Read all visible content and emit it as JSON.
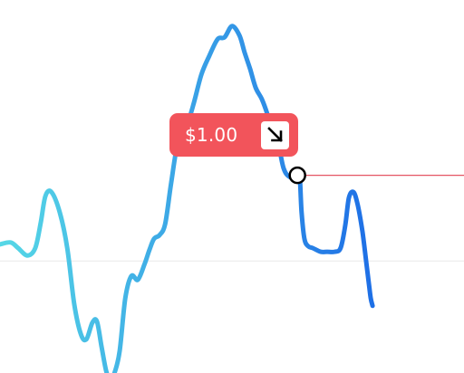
{
  "price_badge": {
    "value": "$1.00",
    "icon": "arrow-down-right-icon",
    "color": "#F2545B"
  },
  "colors": {
    "line_start": "#56D8E6",
    "line_end": "#1E6FE6",
    "price_line": "#E45563",
    "baseline": "#EEEEEE",
    "marker_fill": "#FFFFFF",
    "marker_stroke": "#000000"
  },
  "chart_data": {
    "type": "line",
    "grid": false,
    "xlim": [
      0,
      100
    ],
    "ylim": [
      0,
      100
    ],
    "series": [
      {
        "x": [
          0,
          2.3,
          3.9,
          5.9,
          7.6,
          8.8,
          9.8,
          11.1,
          12.9,
          14.5,
          16.0,
          17.4,
          18.6,
          19.9,
          20.9,
          21.9,
          22.9,
          23.8,
          24.8,
          25.8,
          27.0,
          28.3,
          29.7,
          31.1,
          32.2,
          33.2,
          34.4,
          35.6,
          36.9,
          38.3,
          40.2,
          41.8,
          43.4,
          45.1,
          46.9,
          48.4,
          50.0,
          51.6,
          52.7,
          53.9,
          55.1,
          56.4,
          57.6,
          58.6,
          59.8,
          61.1,
          62.5,
          64.1,
          64.6,
          65.0,
          65.6,
          66.4,
          67.4,
          69.1,
          70.5,
          72.1,
          73.4,
          74.4,
          75.2,
          76.2,
          77.1,
          78.1,
          78.9,
          79.5,
          79.9,
          80.3
        ],
        "y": [
          34.5,
          35.0,
          33.5,
          31.5,
          33.5,
          40.5,
          47.5,
          48.5,
          43.0,
          33.5,
          18.5,
          10.5,
          9.0,
          13.5,
          13.8,
          7.0,
          0.5,
          -2.0,
          0.5,
          6.0,
          20.0,
          26.0,
          25.0,
          29.0,
          33.0,
          36.0,
          37.0,
          40.0,
          51.0,
          61.5,
          66.0,
          72.5,
          80.0,
          85.0,
          89.5,
          90.0,
          93.0,
          90.5,
          86.0,
          81.5,
          76.5,
          73.5,
          69.5,
          65.0,
          62.5,
          55.0,
          52.5,
          53.0,
          52.5,
          43.0,
          36.0,
          34.0,
          33.5,
          32.5,
          32.5,
          32.5,
          33.5,
          39.5,
          47.0,
          48.5,
          45.0,
          38.0,
          30.0,
          24.0,
          20.0,
          18.0
        ],
        "current_marker": {
          "x": 64.1,
          "y": 53.0
        }
      }
    ],
    "price_line_y": 53.0,
    "baseline_y": 30.0
  }
}
